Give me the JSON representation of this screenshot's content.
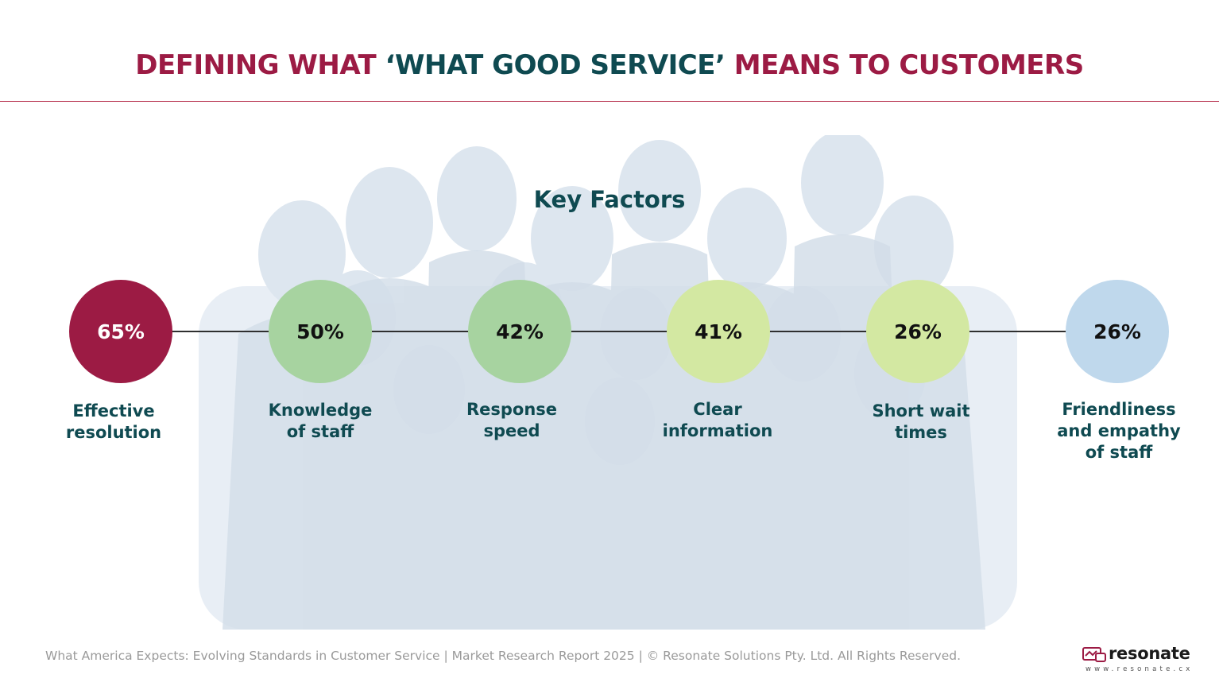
{
  "title": {
    "part1": "DEFINING WHAT ",
    "part2": "‘WHAT GOOD SERVICE’",
    "part3": " MEANS TO CUSTOMERS"
  },
  "subtitle": "Key Factors",
  "factors": [
    {
      "value": "65%",
      "label_line1": "Effective",
      "label_line2": "resolution",
      "label_line3": ""
    },
    {
      "value": "50%",
      "label_line1": "Knowledge",
      "label_line2": "of staff",
      "label_line3": ""
    },
    {
      "value": "42%",
      "label_line1": "Response",
      "label_line2": "speed",
      "label_line3": ""
    },
    {
      "value": "41%",
      "label_line1": "Clear",
      "label_line2": "information",
      "label_line3": ""
    },
    {
      "value": "26%",
      "label_line1": "Short wait",
      "label_line2": "times",
      "label_line3": ""
    },
    {
      "value": "26%",
      "label_line1": "Friendliness",
      "label_line2": "and empathy",
      "label_line3": "of staff"
    }
  ],
  "colors": {
    "title_primary": "#9c1b44",
    "title_accent": "#0f4a51",
    "circle_1": "#9c1b44",
    "circle_2": "#a7d3a0",
    "circle_3": "#a7d3a0",
    "circle_4": "#d3e8a2",
    "circle_5": "#d3e8a2",
    "circle_6": "#bfd8ec"
  },
  "footer": {
    "text": "What America Expects: Evolving Standards in Customer Service | Market Research Report 2025 | © Resonate Solutions Pty. Ltd. All Rights Reserved."
  },
  "logo": {
    "wordmark": "resonate",
    "url": "www.resonate.cx",
    "icon": "resonate-logo-icon"
  },
  "background": {
    "image": "group-of-people-photo"
  }
}
